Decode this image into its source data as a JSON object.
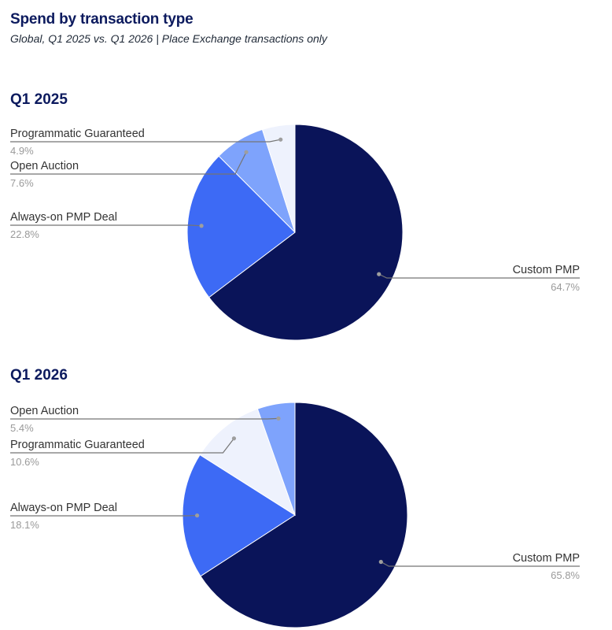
{
  "header": {
    "title": "Spend by transaction type",
    "subtitle": "Global, Q1 2025 vs. Q1 2026 | Place Exchange transactions only"
  },
  "colors": {
    "Custom PMP": "#0a1459",
    "Always-on PMP Deal": "#3d6af5",
    "Open Auction": "#7ea3fc",
    "Programmatic Guaranteed": "#eef2fd",
    "leader": "#757575",
    "label": "#333333",
    "percent": "#9a9a9a"
  },
  "chart_data": [
    {
      "type": "pie",
      "title": "Q1 2025",
      "slices": [
        {
          "name": "Custom PMP",
          "value": 64.7,
          "label": "64.7%"
        },
        {
          "name": "Always-on PMP Deal",
          "value": 22.8,
          "label": "22.8%"
        },
        {
          "name": "Open Auction",
          "value": 7.6,
          "label": "7.6%"
        },
        {
          "name": "Programmatic Guaranteed",
          "value": 4.9,
          "label": "4.9%"
        }
      ]
    },
    {
      "type": "pie",
      "title": "Q1 2026",
      "slices": [
        {
          "name": "Custom PMP",
          "value": 65.8,
          "label": "65.8%"
        },
        {
          "name": "Always-on PMP Deal",
          "value": 18.1,
          "label": "18.1%"
        },
        {
          "name": "Programmatic Guaranteed",
          "value": 10.6,
          "label": "10.6%"
        },
        {
          "name": "Open Auction",
          "value": 5.4,
          "label": "5.4%"
        }
      ]
    }
  ]
}
